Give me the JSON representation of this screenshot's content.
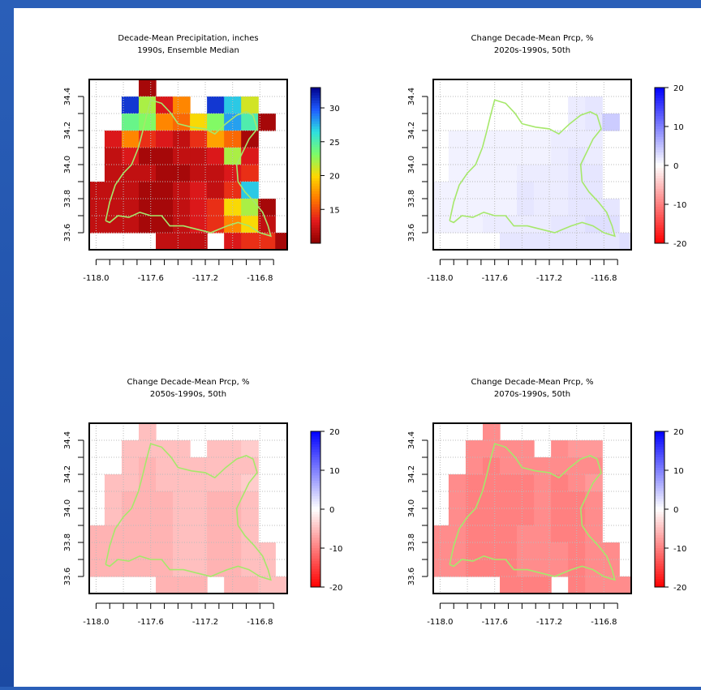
{
  "outline_color": "#a6e86b",
  "chart_data": [
    {
      "type": "heatmap",
      "title": "Decade-Mean Precipitation, inches",
      "subtitle": "1990s, Ensemble Median",
      "xlim": [
        -118.05,
        -116.6
      ],
      "ylim": [
        33.5,
        34.5
      ],
      "x_ticks": [
        "-118.0",
        "-117.6",
        "-117.2",
        "-116.8"
      ],
      "y_ticks": [
        "33.6",
        "33.8",
        "34.0",
        "34.2",
        "34.4"
      ],
      "grid": true,
      "legend": {
        "position": "right",
        "palette": "rainbow",
        "min": 10,
        "max": 33,
        "labels": [
          "30",
          "25",
          "20",
          "15"
        ],
        "label_values": [
          30,
          25,
          20,
          15
        ]
      },
      "cell_size": [
        0.125,
        0.1
      ],
      "cells_rows": [
        {
          "y": 34.45,
          "x0": -117.625,
          "values": [
            11
          ]
        },
        {
          "y": 34.35,
          "x0": -117.75,
          "values": [
            31,
            22,
            13,
            17,
            null,
            31,
            27,
            21
          ]
        },
        {
          "y": 34.25,
          "x0": -117.75,
          "values": [
            24,
            23,
            17,
            16,
            20,
            23,
            28,
            25,
            11
          ]
        },
        {
          "y": 34.15,
          "x0": -117.875,
          "values": [
            13,
            17,
            14,
            13,
            12,
            14,
            18,
            16,
            11
          ]
        },
        {
          "y": 34.05,
          "x0": -117.875,
          "values": [
            12,
            13,
            11,
            11,
            12,
            12,
            13,
            22,
            13
          ]
        },
        {
          "y": 33.95,
          "x0": -117.875,
          "values": [
            12,
            12,
            12,
            11,
            11,
            12,
            12,
            13,
            14
          ]
        },
        {
          "y": 33.85,
          "x0": -118.0,
          "values": [
            12,
            12,
            12,
            11,
            11,
            12,
            13,
            12,
            14,
            27
          ]
        },
        {
          "y": 33.75,
          "x0": -118.0,
          "values": [
            12,
            12,
            12,
            11,
            11,
            12,
            13,
            14,
            20,
            22,
            11
          ]
        },
        {
          "y": 33.65,
          "x0": -118.0,
          "values": [
            12,
            12,
            12,
            11,
            11,
            12,
            13,
            14,
            17,
            20,
            12
          ]
        },
        {
          "y": 33.55,
          "x0": -117.5,
          "values": [
            12,
            12,
            12,
            null,
            13,
            14,
            14,
            11
          ]
        }
      ]
    },
    {
      "type": "heatmap",
      "title": "Change Decade-Mean Prcp, %",
      "subtitle": "2020s-1990s, 50th",
      "xlim": [
        -118.05,
        -116.6
      ],
      "ylim": [
        33.5,
        34.5
      ],
      "x_ticks": [
        "-118.0",
        "-117.6",
        "-117.2",
        "-116.8"
      ],
      "y_ticks": [
        "33.6",
        "33.8",
        "34.0",
        "34.2",
        "34.4"
      ],
      "grid": true,
      "legend": {
        "position": "right",
        "palette": "red-white-blue",
        "min": -20,
        "max": 20,
        "labels": [
          "20",
          "10",
          "0",
          "-10",
          "-20"
        ],
        "label_values": [
          20,
          10,
          0,
          -10,
          -20
        ]
      },
      "cell_size": [
        0.125,
        0.1
      ],
      "cells_rows": [
        {
          "y": 34.35,
          "x0": -117.0,
          "values": [
            1.5,
            2
          ]
        },
        {
          "y": 34.25,
          "x0": -117.0,
          "values": [
            1.5,
            2,
            4
          ]
        },
        {
          "y": 34.15,
          "x0": -117.875,
          "values": [
            1,
            1,
            1,
            1,
            1,
            1,
            1.5,
            1.5,
            1.5
          ]
        },
        {
          "y": 34.05,
          "x0": -117.875,
          "values": [
            1,
            1,
            1,
            1,
            1,
            1,
            1.5,
            2,
            1.5
          ]
        },
        {
          "y": 33.95,
          "x0": -117.875,
          "values": [
            1,
            1,
            1,
            1,
            1.5,
            1.5,
            1.5,
            2,
            2
          ]
        },
        {
          "y": 33.85,
          "x0": -118.0,
          "values": [
            1,
            1,
            1,
            1,
            1,
            2,
            1.5,
            1.5,
            2,
            2
          ]
        },
        {
          "y": 33.75,
          "x0": -118.0,
          "values": [
            1,
            1,
            1,
            1,
            1,
            2,
            1.5,
            1.5,
            2,
            2,
            2
          ]
        },
        {
          "y": 33.65,
          "x0": -118.0,
          "values": [
            1,
            1,
            1,
            1.5,
            1.5,
            1.5,
            1.5,
            2,
            2,
            2.5,
            2.5
          ]
        },
        {
          "y": 33.55,
          "x0": -117.5,
          "values": [
            2,
            2,
            2,
            2,
            2,
            2,
            2,
            2.5
          ]
        }
      ]
    },
    {
      "type": "heatmap",
      "title": "Change Decade-Mean Prcp, %",
      "subtitle": "2050s-1990s, 50th",
      "xlim": [
        -118.05,
        -116.6
      ],
      "ylim": [
        33.5,
        34.5
      ],
      "x_ticks": [
        "-118.0",
        "-117.6",
        "-117.2",
        "-116.8"
      ],
      "y_ticks": [
        "33.6",
        "33.8",
        "34.0",
        "34.2",
        "34.4"
      ],
      "grid": true,
      "legend": {
        "position": "right",
        "palette": "red-white-blue",
        "min": -20,
        "max": 20,
        "labels": [
          "20",
          "10",
          "0",
          "-10",
          "-20"
        ],
        "label_values": [
          20,
          10,
          0,
          -10,
          -20
        ]
      },
      "cell_size": [
        0.125,
        0.1
      ],
      "cells_rows": [
        {
          "y": 34.45,
          "x0": -117.625,
          "values": [
            -5
          ]
        },
        {
          "y": 34.35,
          "x0": -117.75,
          "values": [
            -5,
            -5,
            -5,
            -5,
            null,
            -5,
            -5,
            -4
          ]
        },
        {
          "y": 34.25,
          "x0": -117.75,
          "values": [
            -5,
            -6,
            -5,
            -5,
            -5,
            -5,
            -5,
            -5
          ]
        },
        {
          "y": 34.15,
          "x0": -117.875,
          "values": [
            -5,
            -5,
            -6,
            -5,
            -5,
            -5,
            -5,
            -5,
            -4
          ]
        },
        {
          "y": 34.05,
          "x0": -117.875,
          "values": [
            -5,
            -6,
            -6,
            -6,
            -5,
            -5,
            -6,
            -6,
            -5
          ]
        },
        {
          "y": 33.95,
          "x0": -117.875,
          "values": [
            -5,
            -6,
            -6,
            -6,
            -5,
            -5,
            -6,
            -6,
            -5
          ]
        },
        {
          "y": 33.85,
          "x0": -118.0,
          "values": [
            -6,
            -6,
            -6,
            -6,
            -6,
            -5,
            -5,
            -6,
            -6,
            -5
          ]
        },
        {
          "y": 33.75,
          "x0": -118.0,
          "values": [
            -6,
            -6,
            -6,
            -6,
            -6,
            -5,
            -5,
            -6,
            -6,
            -5,
            -5
          ]
        },
        {
          "y": 33.65,
          "x0": -118.0,
          "values": [
            -6,
            -6,
            -6,
            -6,
            -6,
            -5,
            -5,
            -6,
            -6,
            -5,
            -5
          ]
        },
        {
          "y": 33.55,
          "x0": -117.5,
          "values": [
            -6,
            -6,
            -6,
            null,
            -6,
            -6,
            -5,
            -5
          ]
        }
      ]
    },
    {
      "type": "heatmap",
      "title": "Change Decade-Mean Prcp, %",
      "subtitle": "2070s-1990s, 50th",
      "xlim": [
        -118.05,
        -116.6
      ],
      "ylim": [
        33.5,
        34.5
      ],
      "x_ticks": [
        "-118.0",
        "-117.6",
        "-117.2",
        "-116.8"
      ],
      "y_ticks": [
        "33.6",
        "33.8",
        "34.0",
        "34.2",
        "34.4"
      ],
      "grid": true,
      "legend": {
        "position": "right",
        "palette": "red-white-blue",
        "min": -20,
        "max": 20,
        "labels": [
          "20",
          "10",
          "0",
          "-10",
          "-20"
        ],
        "label_values": [
          20,
          10,
          0,
          -10,
          -20
        ]
      },
      "cell_size": [
        0.125,
        0.1
      ],
      "cells_rows": [
        {
          "y": 34.45,
          "x0": -117.625,
          "values": [
            -9
          ]
        },
        {
          "y": 34.35,
          "x0": -117.75,
          "values": [
            -9,
            -9,
            -9,
            -9,
            null,
            -9,
            -8,
            -8
          ]
        },
        {
          "y": 34.25,
          "x0": -117.75,
          "values": [
            -9,
            -10,
            -9,
            -9,
            -9,
            -9,
            -9,
            -9
          ]
        },
        {
          "y": 34.15,
          "x0": -117.875,
          "values": [
            -9,
            -10,
            -10,
            -10,
            -10,
            -9,
            -10,
            -9,
            -8
          ]
        },
        {
          "y": 34.05,
          "x0": -117.875,
          "values": [
            -9,
            -10,
            -10,
            -10,
            -10,
            -9,
            -10,
            -10,
            -9
          ]
        },
        {
          "y": 33.95,
          "x0": -117.875,
          "values": [
            -9,
            -10,
            -10,
            -10,
            -10,
            -9,
            -10,
            -10,
            -9
          ]
        },
        {
          "y": 33.85,
          "x0": -118.0,
          "values": [
            -9,
            -9,
            -10,
            -10,
            -10,
            -9,
            -9,
            -10,
            -10,
            -9
          ]
        },
        {
          "y": 33.75,
          "x0": -118.0,
          "values": [
            -9,
            -9,
            -10,
            -10,
            -10,
            -9,
            -9,
            -9,
            -10,
            -9,
            -9
          ]
        },
        {
          "y": 33.65,
          "x0": -118.0,
          "values": [
            -9,
            -9,
            -10,
            -10,
            -10,
            -9,
            -9,
            -9,
            -10,
            -9,
            -9
          ]
        },
        {
          "y": 33.55,
          "x0": -117.5,
          "values": [
            -10,
            -10,
            -10,
            null,
            -10,
            -9,
            -9,
            -9
          ]
        }
      ]
    }
  ]
}
